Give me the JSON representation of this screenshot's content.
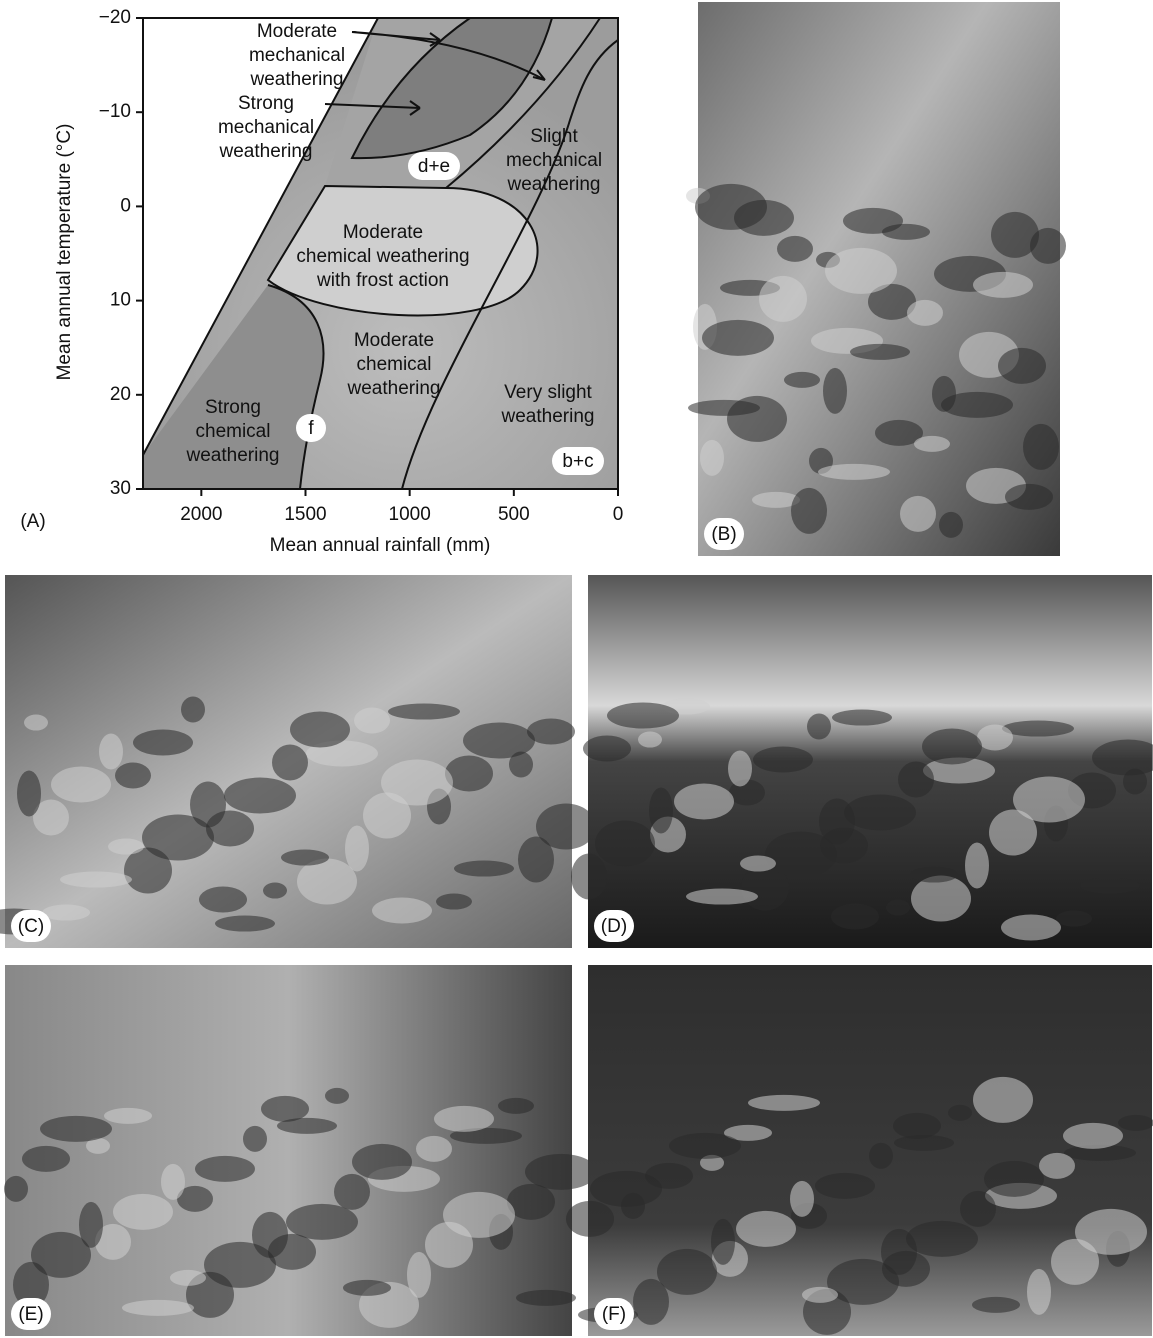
{
  "figure": {
    "panel_a": {
      "label": "(A)",
      "x_axis_title": "Mean annual rainfall (mm)",
      "y_axis_title": "Mean annual temperature (°C)",
      "xlim": [
        2280,
        0
      ],
      "ylim": [
        -20,
        30
      ],
      "xticks": [
        2000,
        1500,
        1000,
        500,
        0
      ],
      "yticks": [
        {
          "value": -20,
          "label": "−20"
        },
        {
          "value": -10,
          "label": "−10"
        },
        0,
        10,
        20,
        30
      ],
      "regions": [
        {
          "lines": [
            "Moderate",
            "mechanical",
            "weathering"
          ]
        },
        {
          "lines": [
            "Strong",
            "mechanical",
            "weathering"
          ]
        },
        {
          "lines": [
            "Slight",
            "mechanical",
            "weathering"
          ]
        },
        {
          "lines": [
            "Moderate",
            "chemical weathering",
            "with frost action"
          ]
        },
        {
          "lines": [
            "Moderate",
            "chemical",
            "weathering"
          ]
        },
        {
          "lines": [
            "Strong",
            "chemical",
            "weathering"
          ]
        },
        {
          "lines": [
            "Very slight",
            "weathering"
          ]
        }
      ],
      "badges": [
        "d+e",
        "f",
        "b+c"
      ]
    },
    "photos": [
      {
        "label": "(B)"
      },
      {
        "label": "(C)"
      },
      {
        "label": "(D)"
      },
      {
        "label": "(E)"
      },
      {
        "label": "(F)"
      }
    ]
  }
}
